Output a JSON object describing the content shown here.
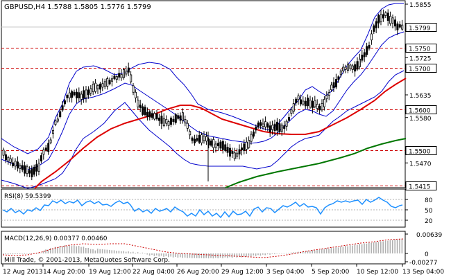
{
  "main_chart": {
    "header": "GBPUSD,H4  1.5788 1.5805 1.5776 1.5799",
    "price_range": [
      1.5405,
      1.5855
    ],
    "price_ticks": [
      {
        "value": 1.5855,
        "label": "1.5855"
      },
      {
        "value": 1.5725,
        "label": "1.5725"
      },
      {
        "value": 1.5635,
        "label": "1.5635"
      },
      {
        "value": 1.558,
        "label": "1.5580"
      },
      {
        "value": 1.547,
        "label": "1.5470"
      }
    ],
    "levels": [
      {
        "value": 1.575,
        "label": "1.5750"
      },
      {
        "value": 1.57,
        "label": "1.5700"
      },
      {
        "value": 1.56,
        "label": "1.5600"
      },
      {
        "value": 1.55,
        "label": "1.5500"
      },
      {
        "value": 1.5415,
        "label": "1.5415"
      }
    ],
    "current_price": {
      "value": 1.5799,
      "label": "1.5799"
    }
  },
  "rsi_panel": {
    "title": "RSI(8) 59.5399",
    "range": [
      0,
      100
    ],
    "ticks": [
      {
        "value": 80,
        "label": "80"
      },
      {
        "value": 50,
        "label": "50"
      },
      {
        "value": 20,
        "label": "20"
      }
    ]
  },
  "macd_panel": {
    "title": "MACD(12,26,9) 0.00377 0.00460",
    "range": [
      -0.00277,
      0.00639
    ],
    "ticks": [
      {
        "value": 0.00639,
        "label": "0.00639"
      },
      {
        "value": 0,
        "label": "0"
      },
      {
        "value": -0.00277,
        "label": "-0.00277"
      }
    ]
  },
  "copyright": "Mill Trade, © 2001-2013, MetaQuotes Software Corp.",
  "time_axis": [
    "12 Aug 2013",
    "14 Aug 20:00",
    "19 Aug 12:00",
    "22 Aug 04:00",
    "26 Aug 20:00",
    "29 Aug 12:00",
    "3 Sep 04:00",
    "5 Sep 20:00",
    "10 Sep 12:00",
    "13 Sep 04:00"
  ],
  "colors": {
    "background": "#ffffff",
    "candle": "#000000",
    "bollinger": "#0000cc",
    "ma_fast": "#dd0000",
    "ma_slow": "#007700",
    "level_line": "#cc0000",
    "rsi": "#1e90ff",
    "macd_hist": "#b0b0b0",
    "macd_signal": "#cc0000"
  }
}
